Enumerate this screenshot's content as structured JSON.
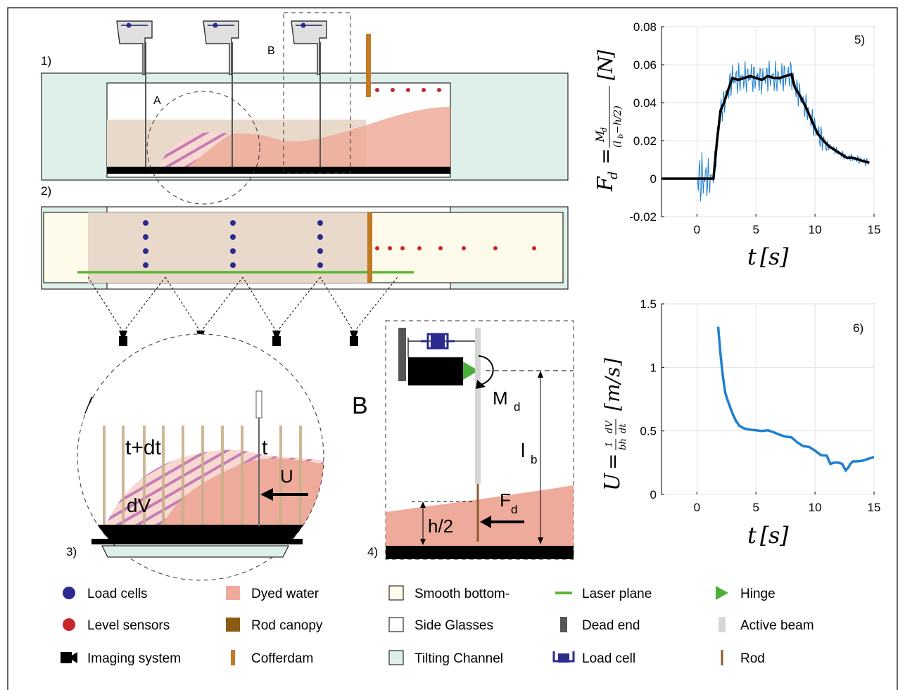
{
  "panel_labels": {
    "p1": "1)",
    "p2": "2)",
    "p3": "3)",
    "p4": "4)",
    "p5": "5)",
    "p6": "6)"
  },
  "detail_labels": {
    "A_small": "A",
    "B_small": "B",
    "A_big": "A",
    "B_big": "B"
  },
  "detail_a": {
    "t_dt": "t+dt",
    "t": "t",
    "dV": "dV",
    "U": "U"
  },
  "detail_b": {
    "M": "M",
    "M_sub": "d",
    "l": "l",
    "l_sub": "b",
    "F": "F",
    "F_sub": "d",
    "h2": "h/2"
  },
  "colors": {
    "load_cell": "#2b2b8f",
    "level_sensor": "#c8262e",
    "dyed_water": "#eeaa9a",
    "rod_canopy": "#8b5a13",
    "smooth_bottom": "#fffbea",
    "side_glass": "#ffffff",
    "tilting_channel": "#dff0ea",
    "laser": "#5ab535",
    "hinge": "#4caf3a",
    "dead_end": "#555555",
    "active_beam": "#d6d6d6",
    "rod": "#8b5a30",
    "cofferdam": "#c27a24",
    "blue_line": "#1f7fd0"
  },
  "legend": [
    {
      "key": "load-cells",
      "icon": "circle-blue",
      "label": "Load cells"
    },
    {
      "key": "dyed-water",
      "icon": "square-salmon",
      "label": "Dyed water"
    },
    {
      "key": "smooth-bottom",
      "icon": "square-cream",
      "label": "Smooth bottom-"
    },
    {
      "key": "laser-plane",
      "icon": "line-green",
      "label": "Laser plane"
    },
    {
      "key": "hinge",
      "icon": "triangle-green",
      "label": "Hinge"
    },
    {
      "key": "level-sensors",
      "icon": "circle-red",
      "label": "Level sensors"
    },
    {
      "key": "rod-canopy",
      "icon": "square-brown",
      "label": "Rod canopy"
    },
    {
      "key": "side-glasses",
      "icon": "square-white",
      "label": "Side Glasses"
    },
    {
      "key": "dead-end",
      "icon": "bar-grey",
      "label": "Dead end"
    },
    {
      "key": "active-beam",
      "icon": "bar-lightgrey",
      "label": "Active beam"
    },
    {
      "key": "imaging-system",
      "icon": "camera-black",
      "label": "Imaging system"
    },
    {
      "key": "cofferdam",
      "icon": "bar-orange",
      "label": "Cofferdam"
    },
    {
      "key": "tilting-channel",
      "icon": "square-mint",
      "label": "Tilting Channel"
    },
    {
      "key": "load-cell",
      "icon": "loadcell-blue",
      "label": "Load cell"
    },
    {
      "key": "rod",
      "icon": "line-brown",
      "label": "Rod"
    }
  ],
  "chart_data": [
    {
      "type": "line",
      "panel": "5)",
      "ylabel": "F_d = M_d / (l_b - h/2) [N]",
      "xlabel": "t [s]",
      "xlim": [
        -3,
        15
      ],
      "ylim": [
        -0.02,
        0.08
      ],
      "xticks": [
        0,
        5,
        10,
        15
      ],
      "yticks": [
        -0.02,
        0,
        0.02,
        0.04,
        0.06,
        0.08
      ],
      "xtick_labels": [
        "0",
        "5",
        "10",
        "15"
      ],
      "ytick_labels": [
        "-0.02",
        "0",
        "0.02",
        "0.04",
        "0.06",
        "0.08"
      ],
      "grid": true,
      "series": [
        {
          "style": "black-mean",
          "x": [
            -3,
            0,
            1,
            1.4,
            1.7,
            2,
            2.3,
            2.6,
            3,
            3.5,
            4,
            4.5,
            5,
            5.5,
            6,
            6.5,
            7,
            7.5,
            8,
            8.3,
            8.7,
            9.2,
            9.7,
            10.2,
            10.7,
            11.2,
            11.7,
            12.2,
            12.7,
            13.2,
            13.7,
            14.2,
            14.6
          ],
          "y": [
            0,
            0,
            0,
            0,
            0.02,
            0.036,
            0.04,
            0.046,
            0.053,
            0.052,
            0.053,
            0.054,
            0.053,
            0.052,
            0.054,
            0.053,
            0.053,
            0.054,
            0.055,
            0.048,
            0.044,
            0.038,
            0.031,
            0.024,
            0.02,
            0.017,
            0.015,
            0.013,
            0.011,
            0.011,
            0.01,
            0.009,
            0.0085
          ]
        },
        {
          "style": "blue-raw",
          "amplitude_note": "noisy oscillation around mean"
        }
      ]
    },
    {
      "type": "line",
      "panel": "6)",
      "ylabel": "U = (1/bh) dV/dt [m/s]",
      "xlabel": "t [s]",
      "xlim": [
        -3,
        15
      ],
      "ylim": [
        0,
        1.5
      ],
      "xticks": [
        0,
        5,
        10,
        15
      ],
      "yticks": [
        0,
        0.5,
        1,
        1.5
      ],
      "xtick_labels": [
        "0",
        "5",
        "10",
        "15"
      ],
      "ytick_labels": [
        "0",
        "0.5",
        "1",
        "1.5"
      ],
      "grid": true,
      "series": [
        {
          "style": "blue",
          "x": [
            1.8,
            2,
            2.2,
            2.4,
            2.6,
            3,
            3.3,
            3.6,
            4,
            4.5,
            5,
            5.5,
            6,
            6.5,
            7,
            7.5,
            8,
            8.5,
            9,
            9.5,
            10,
            10.5,
            11,
            11.3,
            11.6,
            12,
            12.3,
            12.6,
            12.8,
            13,
            13.2,
            13.5,
            14,
            14.5,
            15
          ],
          "y": [
            1.32,
            1.1,
            0.93,
            0.8,
            0.74,
            0.64,
            0.58,
            0.54,
            0.52,
            0.51,
            0.505,
            0.5,
            0.505,
            0.49,
            0.47,
            0.455,
            0.45,
            0.41,
            0.38,
            0.375,
            0.345,
            0.31,
            0.305,
            0.24,
            0.25,
            0.25,
            0.24,
            0.19,
            0.21,
            0.24,
            0.26,
            0.26,
            0.265,
            0.28,
            0.295
          ]
        }
      ]
    }
  ]
}
